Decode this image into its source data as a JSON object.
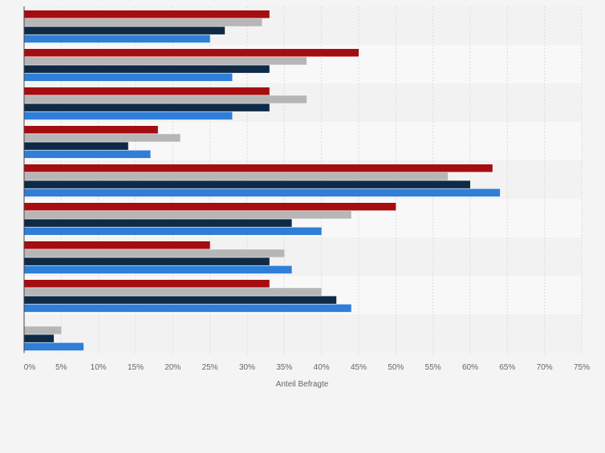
{
  "chart_data": {
    "type": "bar",
    "orientation": "horizontal",
    "categories": [
      "",
      "",
      "",
      "",
      "",
      "",
      "",
      "",
      ""
    ],
    "series": [
      {
        "color": "#a50d10",
        "values": [
          33,
          45,
          33,
          18,
          63,
          50,
          25,
          33,
          null
        ]
      },
      {
        "color": "#b6b6b6",
        "values": [
          32,
          38,
          38,
          21,
          57,
          44,
          35,
          40,
          5
        ]
      },
      {
        "color": "#0e2a47",
        "values": [
          27,
          33,
          33,
          14,
          60,
          36,
          33,
          42,
          4
        ]
      },
      {
        "color": "#2f7ed8",
        "values": [
          25,
          28,
          28,
          17,
          64,
          40,
          36,
          44,
          8
        ]
      }
    ],
    "x_ticks": [
      "0%",
      "5%",
      "10%",
      "15%",
      "20%",
      "25%",
      "30%",
      "35%",
      "40%",
      "45%",
      "50%",
      "55%",
      "60%",
      "65%",
      "70%",
      "75%"
    ],
    "xlabel": "Anteil Befragte",
    "xlim": [
      0,
      75
    ],
    "grid": true,
    "legend": "none"
  }
}
